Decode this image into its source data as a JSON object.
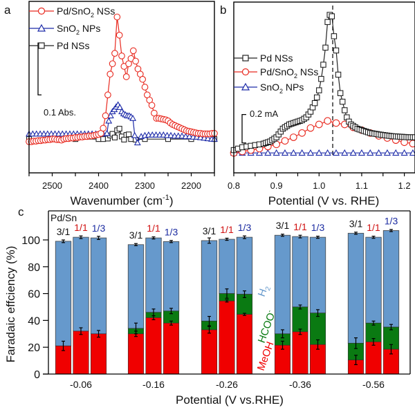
{
  "colors": {
    "pd_sno2": "#e8281e",
    "sno2": "#1c2aa8",
    "pd": "#222222",
    "h2": "#6699cc",
    "hcoo": "#0a7a12",
    "meoh": "#f00000",
    "ratio_3_1": "#111111",
    "ratio_1_1": "#d01010",
    "ratio_1_3": "#1a2aa0"
  },
  "chart_data": [
    {
      "panel": "a",
      "type": "line",
      "panel_label": "a",
      "xlabel": "Wavenumber (cm",
      "xlabel_sup": "-1",
      "xlabel_end": ")",
      "xlim": [
        2550,
        2150
      ],
      "xticks": [
        2500,
        2400,
        2300,
        2200
      ],
      "xtick_labels": [
        "2500",
        "2400",
        "2300",
        "2200"
      ],
      "ylim": [
        -0.06,
        0.27
      ],
      "scale_bar": {
        "label": "0.1 Abs.",
        "value": 0.1
      },
      "legend": [
        "Pd/SnO2 NSs",
        "SnO2 NPs",
        "Pd NSs"
      ],
      "legend_placement": "top-left",
      "series": [
        {
          "name": "Pd/SnO2 NSs",
          "key": "pd_sno2",
          "marker": "circle",
          "x": [
            2550,
            2545,
            2540,
            2535,
            2530,
            2525,
            2520,
            2515,
            2510,
            2505,
            2500,
            2495,
            2490,
            2485,
            2480,
            2475,
            2470,
            2465,
            2460,
            2455,
            2450,
            2445,
            2440,
            2435,
            2430,
            2425,
            2420,
            2415,
            2410,
            2405,
            2400,
            2395,
            2390,
            2385,
            2380,
            2375,
            2370,
            2365,
            2360,
            2355,
            2350,
            2345,
            2340,
            2335,
            2330,
            2325,
            2320,
            2315,
            2310,
            2305,
            2300,
            2295,
            2290,
            2285,
            2280,
            2275,
            2270,
            2265,
            2260,
            2255,
            2250,
            2245,
            2240,
            2235,
            2230,
            2225,
            2220,
            2215,
            2210,
            2205,
            2200,
            2195,
            2190,
            2185,
            2180,
            2175,
            2170,
            2165,
            2160,
            2155,
            2150
          ],
          "y": [
            0.0,
            0.0,
            0.001,
            0.001,
            0.002,
            0.002,
            0.003,
            0.003,
            0.004,
            0.004,
            0.005,
            0.005,
            0.004,
            0.004,
            0.003,
            0.005,
            0.006,
            0.006,
            0.007,
            0.007,
            0.008,
            0.008,
            0.009,
            0.009,
            0.01,
            0.01,
            0.011,
            0.011,
            0.012,
            0.013,
            0.014,
            0.016,
            0.026,
            0.05,
            0.09,
            0.13,
            0.15,
            0.17,
            0.24,
            0.205,
            0.165,
            0.145,
            0.125,
            0.15,
            0.16,
            0.175,
            0.155,
            0.14,
            0.13,
            0.12,
            0.105,
            0.09,
            0.08,
            0.07,
            0.055,
            0.045,
            0.045,
            0.044,
            0.043,
            0.042,
            0.04,
            0.036,
            0.033,
            0.031,
            0.029,
            0.027,
            0.025,
            0.023,
            0.021,
            0.02,
            0.019,
            0.018,
            0.017,
            0.016,
            0.016,
            0.015,
            0.015,
            0.015,
            0.015,
            0.016,
            0.016
          ]
        },
        {
          "name": "SnO2 NPs",
          "key": "sno2",
          "marker": "triangle",
          "x": [
            2550,
            2542,
            2534,
            2526,
            2518,
            2510,
            2502,
            2494,
            2486,
            2478,
            2470,
            2462,
            2454,
            2446,
            2438,
            2430,
            2422,
            2414,
            2406,
            2398,
            2390,
            2382,
            2378,
            2374,
            2370,
            2366,
            2362,
            2358,
            2354,
            2350,
            2346,
            2342,
            2338,
            2334,
            2330,
            2326,
            2322,
            2316,
            2308,
            2300,
            2292,
            2284,
            2276,
            2268,
            2260,
            2252,
            2244,
            2236,
            2228,
            2220,
            2212,
            2204,
            2196,
            2188,
            2180,
            2172,
            2164,
            2156,
            2150
          ],
          "y": [
            0.015,
            0.015,
            0.015,
            0.015,
            0.015,
            0.015,
            0.015,
            0.015,
            0.015,
            0.015,
            0.015,
            0.015,
            0.015,
            0.015,
            0.015,
            0.015,
            0.015,
            0.015,
            0.015,
            0.015,
            0.015,
            0.016,
            0.04,
            0.05,
            0.058,
            0.062,
            0.067,
            0.071,
            0.066,
            0.058,
            0.054,
            0.052,
            0.05,
            0.05,
            0.048,
            0.045,
            0.012,
            -0.002,
            0.01,
            0.012,
            0.013,
            0.013,
            0.013,
            0.013,
            0.013,
            0.012,
            0.012,
            0.011,
            0.011,
            0.011,
            0.01,
            0.01,
            0.009,
            0.009,
            0.008,
            0.007,
            0.006,
            0.005,
            0.005
          ]
        },
        {
          "name": "Pd NSs",
          "key": "pd",
          "marker": "square",
          "x": [
            2550,
            2500,
            2450,
            2400,
            2390,
            2380,
            2375,
            2370,
            2365,
            2360,
            2355,
            2350,
            2345,
            2340,
            2335,
            2330,
            2320,
            2300,
            2250,
            2200,
            2150
          ],
          "y": [
            0.005,
            0.005,
            0.005,
            0.005,
            0.005,
            0.006,
            0.012,
            0.015,
            0.008,
            0.022,
            0.025,
            0.01,
            0.004,
            0.013,
            0.014,
            0.005,
            0.004,
            0.005,
            0.005,
            0.005,
            0.005
          ]
        }
      ]
    },
    {
      "panel": "b",
      "type": "line",
      "panel_label": "b",
      "xlabel": "Potential (V vs. RHE)",
      "xlim": [
        0.8,
        1.225
      ],
      "xticks": [
        0.8,
        0.9,
        1.0,
        1.1,
        1.2
      ],
      "xtick_labels": [
        "0.8",
        "0.9",
        "1.0",
        "1.1",
        "1.2"
      ],
      "ylim": [
        -0.14,
        1.06
      ],
      "scale_bar": {
        "label": "0.2 mA",
        "value": 0.2
      },
      "vline": {
        "x": 1.032,
        "style": "dashed"
      },
      "legend": [
        "Pd NSs",
        "Pd/SnO2 NSs",
        "SnO2 NPs"
      ],
      "legend_placement": "center-left",
      "series": [
        {
          "name": "Pd NSs",
          "key": "pd",
          "marker": "square",
          "x": [
            0.8,
            0.81,
            0.82,
            0.83,
            0.84,
            0.85,
            0.86,
            0.87,
            0.875,
            0.88,
            0.885,
            0.89,
            0.895,
            0.9,
            0.905,
            0.91,
            0.915,
            0.92,
            0.925,
            0.93,
            0.935,
            0.94,
            0.945,
            0.95,
            0.955,
            0.96,
            0.965,
            0.97,
            0.975,
            0.98,
            0.985,
            0.99,
            0.995,
            1.0,
            1.005,
            1.01,
            1.015,
            1.02,
            1.025,
            1.03,
            1.035,
            1.04,
            1.045,
            1.05,
            1.055,
            1.06,
            1.065,
            1.07,
            1.075,
            1.08,
            1.085,
            1.09,
            1.095,
            1.1,
            1.105,
            1.11,
            1.115,
            1.12,
            1.125,
            1.13,
            1.135,
            1.14,
            1.145,
            1.15,
            1.155,
            1.16,
            1.165,
            1.17,
            1.175,
            1.18,
            1.185,
            1.19,
            1.195,
            1.2,
            1.205,
            1.21,
            1.215,
            1.22,
            1.225
          ],
          "y": [
            0.02,
            0.03,
            0.04,
            0.045,
            0.05,
            0.055,
            0.06,
            0.065,
            0.07,
            0.075,
            0.08,
            0.09,
            0.1,
            0.11,
            0.13,
            0.15,
            0.17,
            0.18,
            0.19,
            0.2,
            0.205,
            0.21,
            0.215,
            0.22,
            0.225,
            0.23,
            0.24,
            0.25,
            0.27,
            0.29,
            0.32,
            0.35,
            0.39,
            0.44,
            0.52,
            0.62,
            0.74,
            0.92,
            0.97,
            0.96,
            0.82,
            0.72,
            0.55,
            0.42,
            0.36,
            0.3,
            0.25,
            0.22,
            0.2,
            0.19,
            0.18,
            0.17,
            0.165,
            0.16,
            0.155,
            0.15,
            0.145,
            0.14,
            0.138,
            0.135,
            0.133,
            0.13,
            0.128,
            0.126,
            0.124,
            0.122,
            0.12,
            0.118,
            0.117,
            0.116,
            0.115,
            0.114,
            0.113,
            0.112,
            0.111,
            0.11,
            0.11,
            0.11,
            0.11
          ]
        },
        {
          "name": "Pd/SnO2 NSs",
          "key": "pd_sno2",
          "marker": "circle",
          "x": [
            0.8,
            0.82,
            0.84,
            0.86,
            0.88,
            0.9,
            0.92,
            0.94,
            0.96,
            0.98,
            1.0,
            1.02,
            1.04,
            1.06,
            1.08,
            1.1,
            1.12,
            1.14,
            1.16,
            1.18,
            1.2,
            1.22
          ],
          "y": [
            0.0,
            0.01,
            0.02,
            0.03,
            0.045,
            0.06,
            0.085,
            0.11,
            0.14,
            0.175,
            0.2,
            0.225,
            0.21,
            0.2,
            0.18,
            0.16,
            0.14,
            0.12,
            0.105,
            0.09,
            0.075,
            0.065
          ]
        },
        {
          "name": "SnO2 NPs",
          "key": "sno2",
          "marker": "triangle",
          "x": [
            0.8,
            0.82,
            0.84,
            0.86,
            0.88,
            0.9,
            0.92,
            0.94,
            0.96,
            0.98,
            1.0,
            1.02,
            1.04,
            1.06,
            1.08,
            1.1,
            1.12,
            1.14,
            1.16,
            1.18,
            1.2,
            1.22
          ],
          "y": [
            0.0,
            0.0,
            0.0,
            0.0,
            0.0,
            0.0,
            0.0,
            0.0,
            0.0,
            0.0,
            0.0,
            0.0,
            0.0,
            0.0,
            0.0,
            0.0,
            0.0,
            0.0,
            0.0,
            0.0,
            0.0,
            0.0
          ]
        }
      ]
    },
    {
      "panel": "c",
      "type": "bar",
      "stacked": true,
      "panel_label": "c",
      "title_inset": "Pd/Sn",
      "xlabel": "Potential (V vs.RHE)",
      "ylabel": "Faradaic effciency (%)",
      "ylim": [
        0,
        110
      ],
      "yticks": [
        0,
        20,
        40,
        60,
        80,
        100
      ],
      "ytick_labels": [
        "0",
        "20",
        "40",
        "60",
        "80",
        "100"
      ],
      "categories": [
        "-0.06",
        "-0.16",
        "-0.26",
        "-0.36",
        "-0.56"
      ],
      "ratios": [
        {
          "label": "3/1",
          "color_key": "ratio_3_1"
        },
        {
          "label": "1/1",
          "color_key": "ratio_1_1"
        },
        {
          "label": "1/3",
          "color_key": "ratio_1_3"
        }
      ],
      "product_labels": [
        {
          "text": "H",
          "sub": "2",
          "color_key": "h2"
        },
        {
          "text": "HCOO",
          "sup": "-",
          "color_key": "hcoo"
        },
        {
          "text": "MeOH",
          "color_key": "meoh"
        }
      ],
      "series": [
        {
          "name": "MeOH",
          "color_key": "meoh"
        },
        {
          "name": "HCOO-",
          "color_key": "hcoo"
        },
        {
          "name": "H2",
          "color_key": "h2"
        }
      ],
      "groups": [
        {
          "potential": "-0.06",
          "bars": [
            {
              "ratio": "3/1",
              "meoh": 21,
              "hcoo": 0,
              "h2": 78,
              "err_meoh": 3.5,
              "err_hcoo": 0,
              "err_total": 1
            },
            {
              "ratio": "1/1",
              "meoh": 32,
              "hcoo": 0,
              "h2": 70,
              "err_meoh": 2.5,
              "err_hcoo": 0,
              "err_total": 1
            },
            {
              "ratio": "1/3",
              "meoh": 30,
              "hcoo": 0,
              "h2": 71.5,
              "err_meoh": 2.5,
              "err_hcoo": 0,
              "err_total": 1.2
            }
          ]
        },
        {
          "potential": "-0.16",
          "bars": [
            {
              "ratio": "3/1",
              "meoh": 30,
              "hcoo": 4,
              "h2": 62.5,
              "err_meoh": 2,
              "err_hcoo": 4,
              "err_total": 0.8
            },
            {
              "ratio": "1/1",
              "meoh": 42,
              "hcoo": 4,
              "h2": 55.5,
              "err_meoh": 1.5,
              "err_hcoo": 2.5,
              "err_total": 0.8
            },
            {
              "ratio": "1/3",
              "meoh": 38,
              "hcoo": 9,
              "h2": 51.8,
              "err_meoh": 1.5,
              "err_hcoo": 2,
              "err_total": 0.8
            }
          ]
        },
        {
          "potential": "-0.26",
          "bars": [
            {
              "ratio": "3/1",
              "meoh": 33,
              "hcoo": 6.5,
              "h2": 60,
              "err_meoh": 2.5,
              "err_hcoo": 3.5,
              "err_total": 2
            },
            {
              "ratio": "1/1",
              "meoh": 54.5,
              "hcoo": 5.5,
              "h2": 40.5,
              "err_meoh": 0.8,
              "err_hcoo": 3.5,
              "err_total": 0.8
            },
            {
              "ratio": "1/3",
              "meoh": 44.5,
              "hcoo": 15,
              "h2": 42.5,
              "err_meoh": 0.8,
              "err_hcoo": 2.5,
              "err_total": 1
            }
          ]
        },
        {
          "potential": "-0.36",
          "bars": [
            {
              "ratio": "3/1",
              "meoh": 21.5,
              "hcoo": 8.5,
              "h2": 73.5,
              "err_meoh": 3,
              "err_hcoo": 3,
              "err_total": 0.8
            },
            {
              "ratio": "1/1",
              "meoh": 31.5,
              "hcoo": 18.5,
              "h2": 52.5,
              "err_meoh": 2,
              "err_hcoo": 1.5,
              "err_total": 1
            },
            {
              "ratio": "1/3",
              "meoh": 22,
              "hcoo": 23.5,
              "h2": 56.5,
              "err_meoh": 3.5,
              "err_hcoo": 2.5,
              "err_total": 0.8
            }
          ]
        },
        {
          "potential": "-0.56",
          "bars": [
            {
              "ratio": "3/1",
              "meoh": 10.5,
              "hcoo": 12.5,
              "h2": 82,
              "err_meoh": 3.5,
              "err_hcoo": 4,
              "err_total": 0.8
            },
            {
              "ratio": "1/1",
              "meoh": 24,
              "hcoo": 14,
              "h2": 64,
              "err_meoh": 2.5,
              "err_hcoo": 1.5,
              "err_total": 0.8
            },
            {
              "ratio": "1/3",
              "meoh": 18.5,
              "hcoo": 16.5,
              "h2": 72,
              "err_meoh": 3.5,
              "err_hcoo": 2,
              "err_total": 0.8
            }
          ]
        }
      ]
    }
  ]
}
